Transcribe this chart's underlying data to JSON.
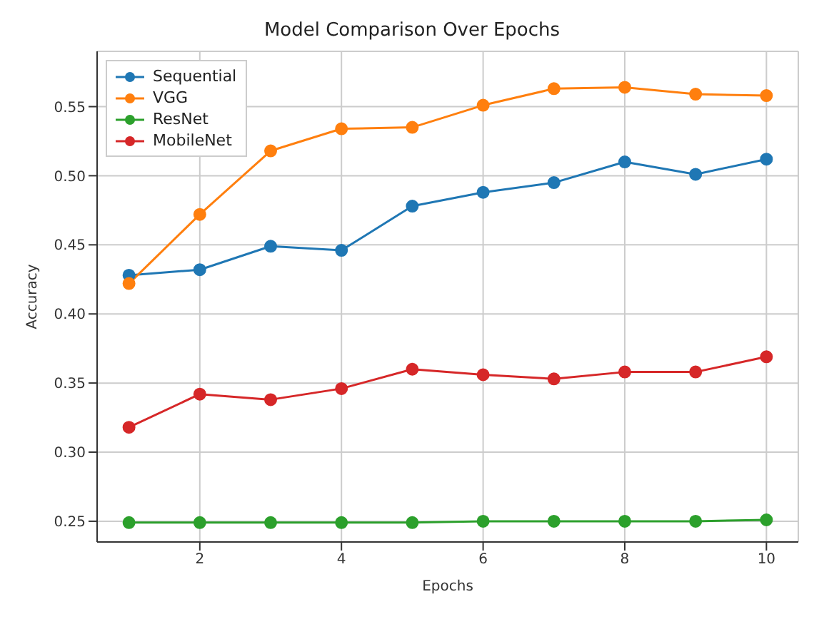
{
  "chart_data": {
    "type": "line",
    "title": "Model Comparison Over Epochs",
    "xlabel": "Epochs",
    "ylabel": "Accuracy",
    "x": [
      1,
      2,
      3,
      4,
      5,
      6,
      7,
      8,
      9,
      10
    ],
    "series": [
      {
        "name": "Sequential",
        "color": "#1f77b4",
        "values": [
          0.428,
          0.432,
          0.449,
          0.446,
          0.478,
          0.488,
          0.495,
          0.51,
          0.501,
          0.512
        ]
      },
      {
        "name": "VGG",
        "color": "#ff7f0e",
        "values": [
          0.422,
          0.472,
          0.518,
          0.534,
          0.535,
          0.551,
          0.563,
          0.564,
          0.559,
          0.558
        ]
      },
      {
        "name": "ResNet",
        "color": "#2ca02c",
        "values": [
          0.249,
          0.249,
          0.249,
          0.249,
          0.249,
          0.25,
          0.25,
          0.25,
          0.25,
          0.251
        ]
      },
      {
        "name": "MobileNet",
        "color": "#d62728",
        "values": [
          0.318,
          0.342,
          0.338,
          0.346,
          0.36,
          0.356,
          0.353,
          0.358,
          0.358,
          0.369
        ]
      }
    ],
    "xlim": [
      0.55,
      10.45
    ],
    "xticks": [
      2,
      4,
      6,
      8,
      10
    ],
    "ylim": [
      0.235,
      0.59
    ],
    "yticks": [
      0.25,
      {
        "value": 0.3,
        "label": "0.30"
      },
      0.35,
      {
        "value": 0.4,
        "label": "0.40"
      },
      0.45,
      {
        "value": 0.5,
        "label": "0.50"
      },
      0.55
    ],
    "grid": true,
    "legend": "top left",
    "marker": "circle",
    "line_style": "solid"
  }
}
